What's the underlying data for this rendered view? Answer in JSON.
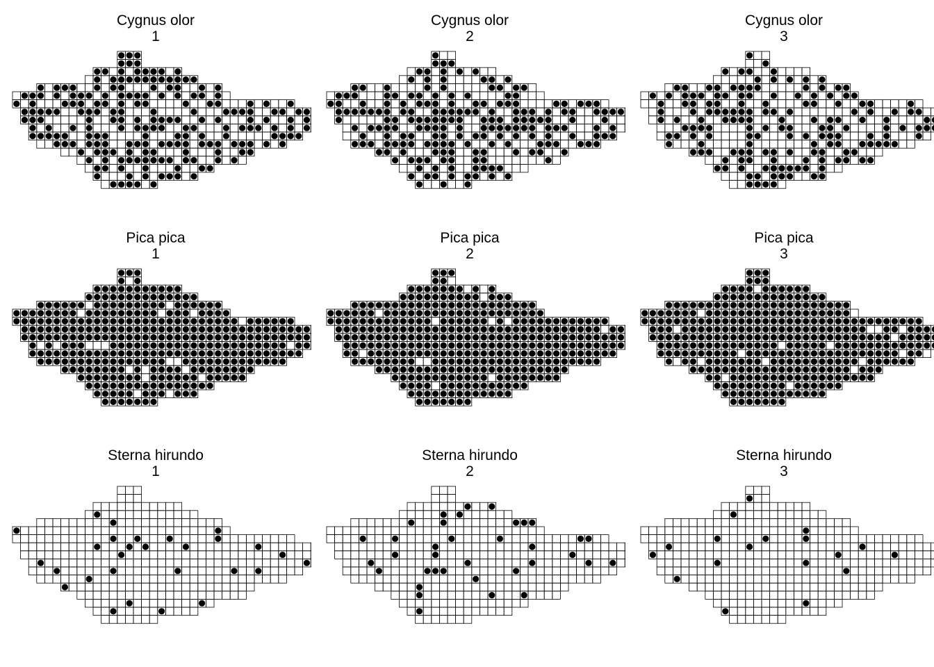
{
  "figure": {
    "panels": [
      {
        "species": "Cygnus olor",
        "period": "1"
      },
      {
        "species": "Cygnus olor",
        "period": "2"
      },
      {
        "species": "Cygnus olor",
        "period": "3"
      },
      {
        "species": "Pica pica",
        "period": "1"
      },
      {
        "species": "Pica pica",
        "period": "2"
      },
      {
        "species": "Pica pica",
        "period": "3"
      },
      {
        "species": "Sterna hirundo",
        "period": "1"
      },
      {
        "species": "Sterna hirundo",
        "period": "2"
      },
      {
        "species": "Sterna hirundo",
        "period": "3"
      }
    ]
  },
  "chart_data": {
    "type": "scatter",
    "description_of_marks": "grid of mapping squares; filled dot = species recorded",
    "grid_rows": [
      [
        13,
        15
      ],
      [
        13,
        15
      ],
      [
        10,
        20
      ],
      [
        9,
        22
      ],
      [
        3,
        25
      ],
      [
        0,
        26
      ],
      [
        0,
        34
      ],
      [
        1,
        37
      ],
      [
        1,
        37
      ],
      [
        2,
        38
      ],
      [
        2,
        35
      ],
      [
        3,
        33
      ],
      [
        6,
        29
      ],
      [
        8,
        28
      ],
      [
        9,
        24
      ],
      [
        10,
        22
      ],
      [
        11,
        17
      ]
    ],
    "presence": {
      "Cygnus olor": [
        0.6,
        0.55,
        0.5
      ],
      "Pica pica": [
        0.92,
        0.95,
        0.93
      ],
      "Sterna hirundo": [
        0.06,
        0.07,
        0.06
      ]
    },
    "colors": {
      "dot": "#000000",
      "square_stroke": "#000000",
      "background": "#ffffff"
    }
  }
}
